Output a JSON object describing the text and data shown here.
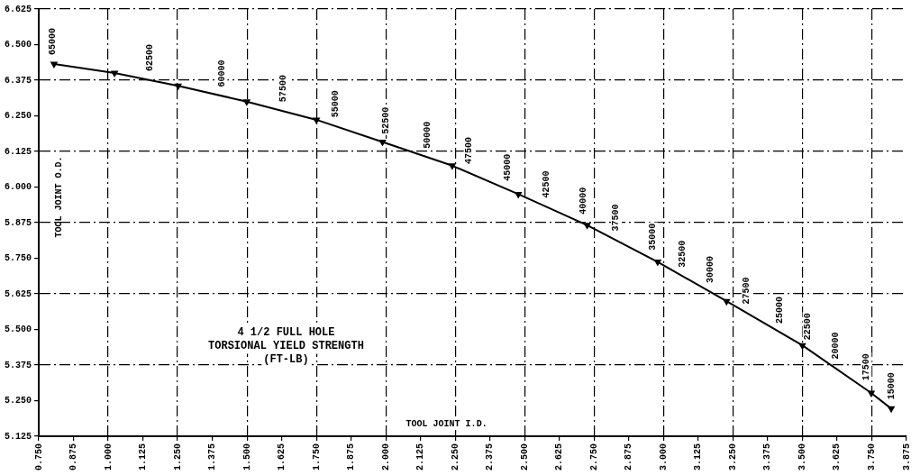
{
  "chart_data": {
    "type": "line",
    "title": "4 1/2 FULL HOLE\nTORSIONAL YIELD STRENGTH\n(FT-LB)",
    "xlabel": "TOOL JOINT I.D.",
    "ylabel": "TOOL JOINT O.D.",
    "series": [
      {
        "color": "#000000",
        "x": [
          0.805,
          1.023,
          1.252,
          1.499,
          1.75,
          1.988,
          2.239,
          2.477,
          2.725,
          2.979,
          3.227,
          3.5,
          3.748,
          3.82
        ],
        "values": [
          6.432,
          6.4,
          6.355,
          6.3,
          6.236,
          6.158,
          6.075,
          5.975,
          5.866,
          5.737,
          5.599,
          5.444,
          5.277,
          5.222
        ]
      }
    ],
    "annotations": [
      {
        "text": "65000",
        "x": 0.8,
        "y": 6.432
      },
      {
        "text": "62500",
        "x": 1.15,
        "y": 6.375
      },
      {
        "text": "60000",
        "x": 1.41,
        "y": 6.32
      },
      {
        "text": "57500",
        "x": 1.63,
        "y": 6.267
      },
      {
        "text": "55000",
        "x": 1.82,
        "y": 6.213
      },
      {
        "text": "52500",
        "x": 2.0,
        "y": 6.154
      },
      {
        "text": "50000",
        "x": 2.15,
        "y": 6.104
      },
      {
        "text": "47500",
        "x": 2.3,
        "y": 6.049
      },
      {
        "text": "45000",
        "x": 2.44,
        "y": 5.99
      },
      {
        "text": "42500",
        "x": 2.58,
        "y": 5.93
      },
      {
        "text": "40000",
        "x": 2.71,
        "y": 5.873
      },
      {
        "text": "37500",
        "x": 2.83,
        "y": 5.813
      },
      {
        "text": "35000",
        "x": 2.96,
        "y": 5.746
      },
      {
        "text": "32500",
        "x": 3.07,
        "y": 5.686
      },
      {
        "text": "30000",
        "x": 3.17,
        "y": 5.631
      },
      {
        "text": "27500",
        "x": 3.3,
        "y": 5.557
      },
      {
        "text": "25000",
        "x": 3.42,
        "y": 5.489
      },
      {
        "text": "22500",
        "x": 3.52,
        "y": 5.431
      },
      {
        "text": "20000",
        "x": 3.62,
        "y": 5.364
      },
      {
        "text": "17500",
        "x": 3.73,
        "y": 5.289
      },
      {
        "text": "15000",
        "x": 3.82,
        "y": 5.222
      }
    ],
    "xlim": [
      0.75,
      3.875
    ],
    "xticks": [
      {
        "value": 0.75,
        "label": "0.750"
      },
      {
        "value": 0.875,
        "label": "0.875"
      },
      {
        "value": 1.0,
        "label": "1.000"
      },
      {
        "value": 1.125,
        "label": "1.125"
      },
      {
        "value": 1.25,
        "label": "1.250"
      },
      {
        "value": 1.375,
        "label": "1.375"
      },
      {
        "value": 1.5,
        "label": "1.500"
      },
      {
        "value": 1.625,
        "label": "1.625"
      },
      {
        "value": 1.75,
        "label": "1.750"
      },
      {
        "value": 1.875,
        "label": "1.875"
      },
      {
        "value": 2.0,
        "label": "2.000"
      },
      {
        "value": 2.125,
        "label": "2.125"
      },
      {
        "value": 2.25,
        "label": "2.250"
      },
      {
        "value": 2.375,
        "label": "2.375"
      },
      {
        "value": 2.5,
        "label": "2.500"
      },
      {
        "value": 2.625,
        "label": "2.625"
      },
      {
        "value": 2.75,
        "label": "2.750"
      },
      {
        "value": 2.875,
        "label": "2.875"
      },
      {
        "value": 3.0,
        "label": "3.000"
      },
      {
        "value": 3.125,
        "label": "3.125"
      },
      {
        "value": 3.25,
        "label": "3.250"
      },
      {
        "value": 3.375,
        "label": "3.375"
      },
      {
        "value": 3.5,
        "label": "3.500"
      },
      {
        "value": 3.625,
        "label": "3.625"
      },
      {
        "value": 3.75,
        "label": "3.750"
      },
      {
        "value": 3.875,
        "label": "3.875"
      }
    ],
    "ylim": [
      5.125,
      6.625
    ],
    "yticks": [
      {
        "value": 5.125,
        "label": "5.125"
      },
      {
        "value": 5.25,
        "label": "5.250"
      },
      {
        "value": 5.375,
        "label": "5.375"
      },
      {
        "value": 5.5,
        "label": "5.500"
      },
      {
        "value": 5.625,
        "label": "5.625"
      },
      {
        "value": 5.75,
        "label": "5.750"
      },
      {
        "value": 5.875,
        "label": "5.875"
      },
      {
        "value": 6.0,
        "label": "6.000"
      },
      {
        "value": 6.125,
        "label": "6.125"
      },
      {
        "value": 6.25,
        "label": "6.250"
      },
      {
        "value": 6.375,
        "label": "6.375"
      },
      {
        "value": 6.5,
        "label": "6.500"
      },
      {
        "value": 6.625,
        "label": "6.625"
      }
    ],
    "grid": true,
    "marker": "triangle",
    "line_style": "solid"
  }
}
